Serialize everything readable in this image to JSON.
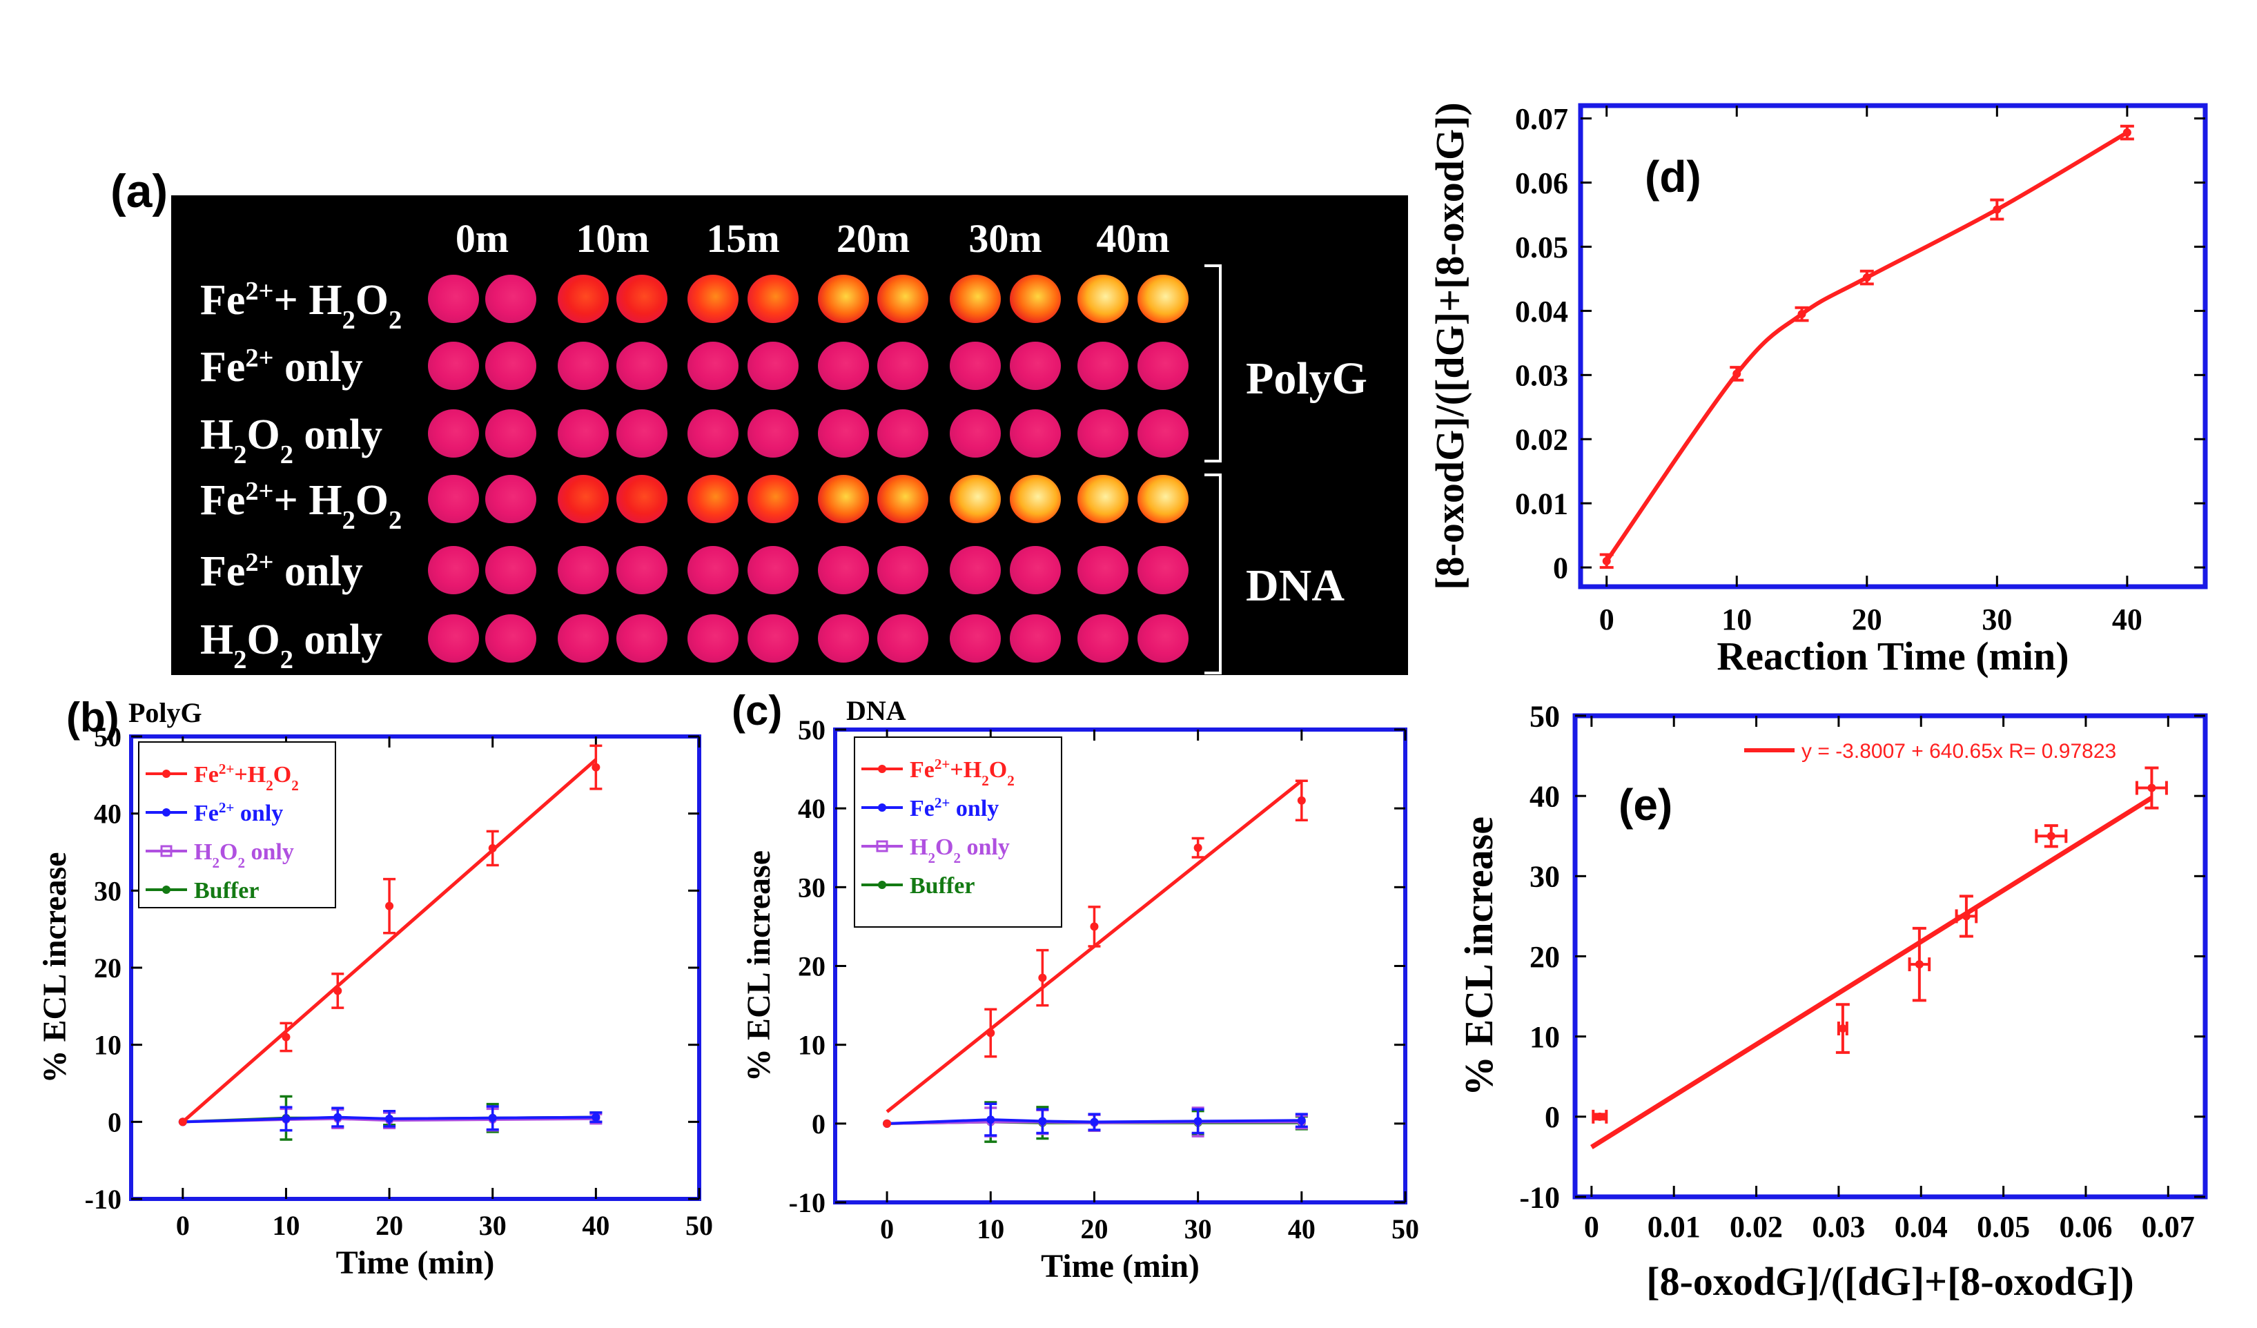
{
  "panel_a": {
    "label": "(a)",
    "times": [
      "0m",
      "10m",
      "15m",
      "20m",
      "30m",
      "40m"
    ],
    "rows": [
      {
        "parts": [
          {
            "t": "Fe"
          },
          {
            "t": "2+",
            "s": "sup"
          },
          {
            "t": "+ H"
          },
          {
            "t": "2",
            "s": "sub"
          },
          {
            "t": "O"
          },
          {
            "t": "2",
            "s": "sub"
          }
        ]
      },
      {
        "parts": [
          {
            "t": "Fe"
          },
          {
            "t": "2+",
            "s": "sup"
          },
          {
            "t": " only"
          }
        ]
      },
      {
        "parts": [
          {
            "t": "H"
          },
          {
            "t": "2",
            "s": "sub"
          },
          {
            "t": "O"
          },
          {
            "t": "2",
            "s": "sub"
          },
          {
            "t": " only"
          }
        ]
      },
      {
        "parts": [
          {
            "t": "Fe"
          },
          {
            "t": "2+",
            "s": "sup"
          },
          {
            "t": "+ H"
          },
          {
            "t": "2",
            "s": "sub"
          },
          {
            "t": "O"
          },
          {
            "t": "2",
            "s": "sub"
          }
        ]
      },
      {
        "parts": [
          {
            "t": "Fe"
          },
          {
            "t": "2+",
            "s": "sup"
          },
          {
            "t": " only"
          }
        ]
      },
      {
        "parts": [
          {
            "t": "H"
          },
          {
            "t": "2",
            "s": "sub"
          },
          {
            "t": "O"
          },
          {
            "t": "2",
            "s": "sub"
          },
          {
            "t": " only"
          }
        ]
      }
    ],
    "groups": [
      "PolyG",
      "DNA"
    ],
    "spot_intensity": [
      [
        0,
        0.5,
        0.65,
        0.75,
        0.9,
        1.0
      ],
      [
        0,
        0,
        0,
        0,
        0,
        0
      ],
      [
        0,
        0,
        0,
        0,
        0,
        0
      ],
      [
        0,
        0.5,
        0.6,
        0.75,
        0.95,
        1.0
      ],
      [
        0,
        0,
        0,
        0,
        0,
        0
      ],
      [
        0,
        0,
        0,
        0,
        0,
        0
      ]
    ]
  },
  "chart_data": [
    {
      "id": "b",
      "type": "line",
      "panel_label": "(b)",
      "title": "PolyG",
      "xlabel": "Time (min)",
      "ylabel": "% ECL increase",
      "xlim": [
        -5,
        50
      ],
      "ylim": [
        -10,
        50
      ],
      "xticks": [
        "0",
        "10",
        "20",
        "30",
        "40",
        "50"
      ],
      "yticks": [
        "-10",
        "0",
        "10",
        "20",
        "30",
        "40",
        "50"
      ],
      "legend": [
        {
          "parts": [
            {
              "t": "Fe"
            },
            {
              "t": "2+",
              "s": "sup"
            },
            {
              "t": "+H"
            },
            {
              "t": "2",
              "s": "sub"
            },
            {
              "t": "O"
            },
            {
              "t": "2",
              "s": "sub"
            }
          ],
          "color": "#ff2020",
          "marker": "dot"
        },
        {
          "parts": [
            {
              "t": "Fe"
            },
            {
              "t": "2+",
              "s": "sup"
            },
            {
              "t": " only"
            }
          ],
          "color": "#1a1aff",
          "marker": "dot"
        },
        {
          "parts": [
            {
              "t": "H"
            },
            {
              "t": "2",
              "s": "sub"
            },
            {
              "t": "O"
            },
            {
              "t": "2",
              "s": "sub"
            },
            {
              "t": " only"
            }
          ],
          "color": "#b050e0",
          "marker": "square"
        },
        {
          "parts": [
            {
              "t": "Buffer"
            }
          ],
          "color": "#137a13",
          "marker": "dot"
        }
      ],
      "fit_line": {
        "x": [
          0,
          40
        ],
        "y": [
          0,
          47
        ]
      },
      "series": [
        {
          "name": "Fe2+ + H2O2",
          "color": "#ff2020",
          "x": [
            0,
            10,
            15,
            20,
            30,
            40
          ],
          "y": [
            0,
            11,
            17,
            28,
            35.5,
            46
          ],
          "err": [
            0,
            1.8,
            2.2,
            3.5,
            2.2,
            2.8
          ],
          "line": false
        },
        {
          "name": "Fe2+ only",
          "color": "#1a1aff",
          "x": [
            0,
            10,
            15,
            20,
            30,
            40
          ],
          "y": [
            0,
            0.4,
            0.6,
            0.4,
            0.5,
            0.6
          ],
          "err": [
            0,
            1.5,
            1.2,
            1.0,
            1.5,
            0.6
          ],
          "line": true
        },
        {
          "name": "H2O2 only",
          "color": "#b050e0",
          "x": [
            0,
            10,
            15,
            20,
            30,
            40
          ],
          "y": [
            0,
            0.3,
            0.4,
            0.2,
            0.3,
            0.4
          ],
          "err": [
            0,
            1.4,
            1.2,
            1.0,
            1.4,
            0.6
          ],
          "line": true
        },
        {
          "name": "Buffer",
          "color": "#137a13",
          "x": [
            0,
            10,
            15,
            20,
            30,
            40
          ],
          "y": [
            0,
            0.5,
            0.5,
            0.4,
            0.5,
            0.6
          ],
          "err": [
            0,
            2.8,
            1.2,
            0.8,
            1.8,
            0.6
          ],
          "line": true
        }
      ]
    },
    {
      "id": "c",
      "type": "line",
      "panel_label": "(c)",
      "title": "DNA",
      "xlabel": "Time (min)",
      "ylabel": "% ECL increase",
      "xlim": [
        -5,
        50
      ],
      "ylim": [
        -10,
        50
      ],
      "xticks": [
        "0",
        "10",
        "20",
        "30",
        "40",
        "50"
      ],
      "yticks": [
        "-10",
        "0",
        "10",
        "20",
        "30",
        "40",
        "50"
      ],
      "legend": [
        {
          "parts": [
            {
              "t": "Fe"
            },
            {
              "t": "2+",
              "s": "sup"
            },
            {
              "t": "+H"
            },
            {
              "t": "2",
              "s": "sub"
            },
            {
              "t": "O"
            },
            {
              "t": "2",
              "s": "sub"
            }
          ],
          "color": "#ff2020",
          "marker": "dot"
        },
        {
          "parts": [
            {
              "t": "Fe"
            },
            {
              "t": "2+",
              "s": "sup"
            },
            {
              "t": " only"
            }
          ],
          "color": "#1a1aff",
          "marker": "dot"
        },
        {
          "parts": [
            {
              "t": "H"
            },
            {
              "t": "2",
              "s": "sub"
            },
            {
              "t": "O"
            },
            {
              "t": "2",
              "s": "sub"
            },
            {
              "t": " only"
            }
          ],
          "color": "#b050e0",
          "marker": "square"
        },
        {
          "parts": [
            {
              "t": "Buffer"
            }
          ],
          "color": "#137a13",
          "marker": "dot"
        }
      ],
      "fit_line": {
        "x": [
          0,
          40
        ],
        "y": [
          1.5,
          43.5
        ]
      },
      "series": [
        {
          "name": "Fe2+ + H2O2",
          "color": "#ff2020",
          "x": [
            0,
            10,
            15,
            20,
            30,
            40
          ],
          "y": [
            0,
            11.5,
            18.5,
            25,
            35,
            41
          ],
          "err": [
            0,
            3,
            3.5,
            2.5,
            1.2,
            2.5
          ],
          "line": false
        },
        {
          "name": "Fe2+ only",
          "color": "#1a1aff",
          "x": [
            0,
            10,
            15,
            20,
            30,
            40
          ],
          "y": [
            0,
            0.5,
            0.3,
            0.2,
            0.3,
            0.4
          ],
          "err": [
            0,
            2,
            1.5,
            1,
            1.5,
            0.8
          ],
          "line": true
        },
        {
          "name": "H2O2 only",
          "color": "#b050e0",
          "x": [
            0,
            10,
            15,
            20,
            30,
            40
          ],
          "y": [
            0,
            0.2,
            0.2,
            0.1,
            0.2,
            0.2
          ],
          "err": [
            0,
            1.8,
            1.5,
            1,
            1.8,
            0.8
          ],
          "line": true
        },
        {
          "name": "Buffer",
          "color": "#137a13",
          "x": [
            0,
            10,
            15,
            20,
            30,
            40
          ],
          "y": [
            0,
            0.2,
            0.1,
            0.1,
            0.1,
            0.1
          ],
          "err": [
            0,
            2.5,
            2,
            1,
            1.5,
            0.8
          ],
          "line": true
        }
      ]
    },
    {
      "id": "d",
      "type": "line",
      "panel_label": "(d)",
      "xlabel": "Reaction Time (min)",
      "ylabel": "[8-oxodG]/([dG]+[8-oxodG])",
      "xlim": [
        -2,
        46
      ],
      "ylim": [
        -0.003,
        0.072
      ],
      "xtick_values": [
        0,
        10,
        20,
        30,
        40
      ],
      "xticks": [
        "0",
        "10",
        "20",
        "30",
        "40"
      ],
      "ytick_values": [
        0,
        0.01,
        0.02,
        0.03,
        0.04,
        0.05,
        0.06,
        0.07
      ],
      "yticks": [
        "0",
        "0.01",
        "0.02",
        "0.03",
        "0.04",
        "0.05",
        "0.06",
        "0.07"
      ],
      "series": [
        {
          "name": "8-oxodG fraction",
          "color": "#ff2020",
          "x": [
            0,
            10,
            15,
            20,
            30,
            40
          ],
          "y": [
            0.001,
            0.0302,
            0.0395,
            0.0452,
            0.0558,
            0.0678
          ],
          "err": [
            0.001,
            0.001,
            0.001,
            0.001,
            0.0015,
            0.001
          ]
        }
      ]
    },
    {
      "id": "e",
      "type": "scatter",
      "panel_label": "(e)",
      "xlabel": "[8-oxodG]/([dG]+[8-oxodG])",
      "ylabel": "% ECL increase",
      "xlim": [
        -0.002,
        0.0745
      ],
      "ylim": [
        -10,
        50
      ],
      "xtick_values": [
        0,
        0.01,
        0.02,
        0.03,
        0.04,
        0.05,
        0.06,
        0.07
      ],
      "xticks": [
        "0",
        "0.01",
        "0.02",
        "0.03",
        "0.04",
        "0.05",
        "0.06",
        "0.07"
      ],
      "ytick_values": [
        -10,
        0,
        10,
        20,
        30,
        40,
        50
      ],
      "yticks": [
        "-10",
        "0",
        "10",
        "20",
        "30",
        "40",
        "50"
      ],
      "fit": {
        "intercept": -3.8007,
        "slope": 640.65,
        "R": 0.97823,
        "label": "y = -3.8007 + 640.65x   R= 0.97823",
        "x_range": [
          0,
          0.068
        ]
      },
      "points": {
        "x": [
          0.001,
          0.0305,
          0.0398,
          0.0455,
          0.0558,
          0.068
        ],
        "y": [
          0,
          11,
          19,
          25,
          35,
          41
        ],
        "xerr": [
          0.0008,
          0.0005,
          0.0012,
          0.0012,
          0.0018,
          0.0018
        ],
        "yerr": [
          0.3,
          3,
          4.5,
          2.5,
          1.3,
          2.5
        ]
      }
    }
  ]
}
